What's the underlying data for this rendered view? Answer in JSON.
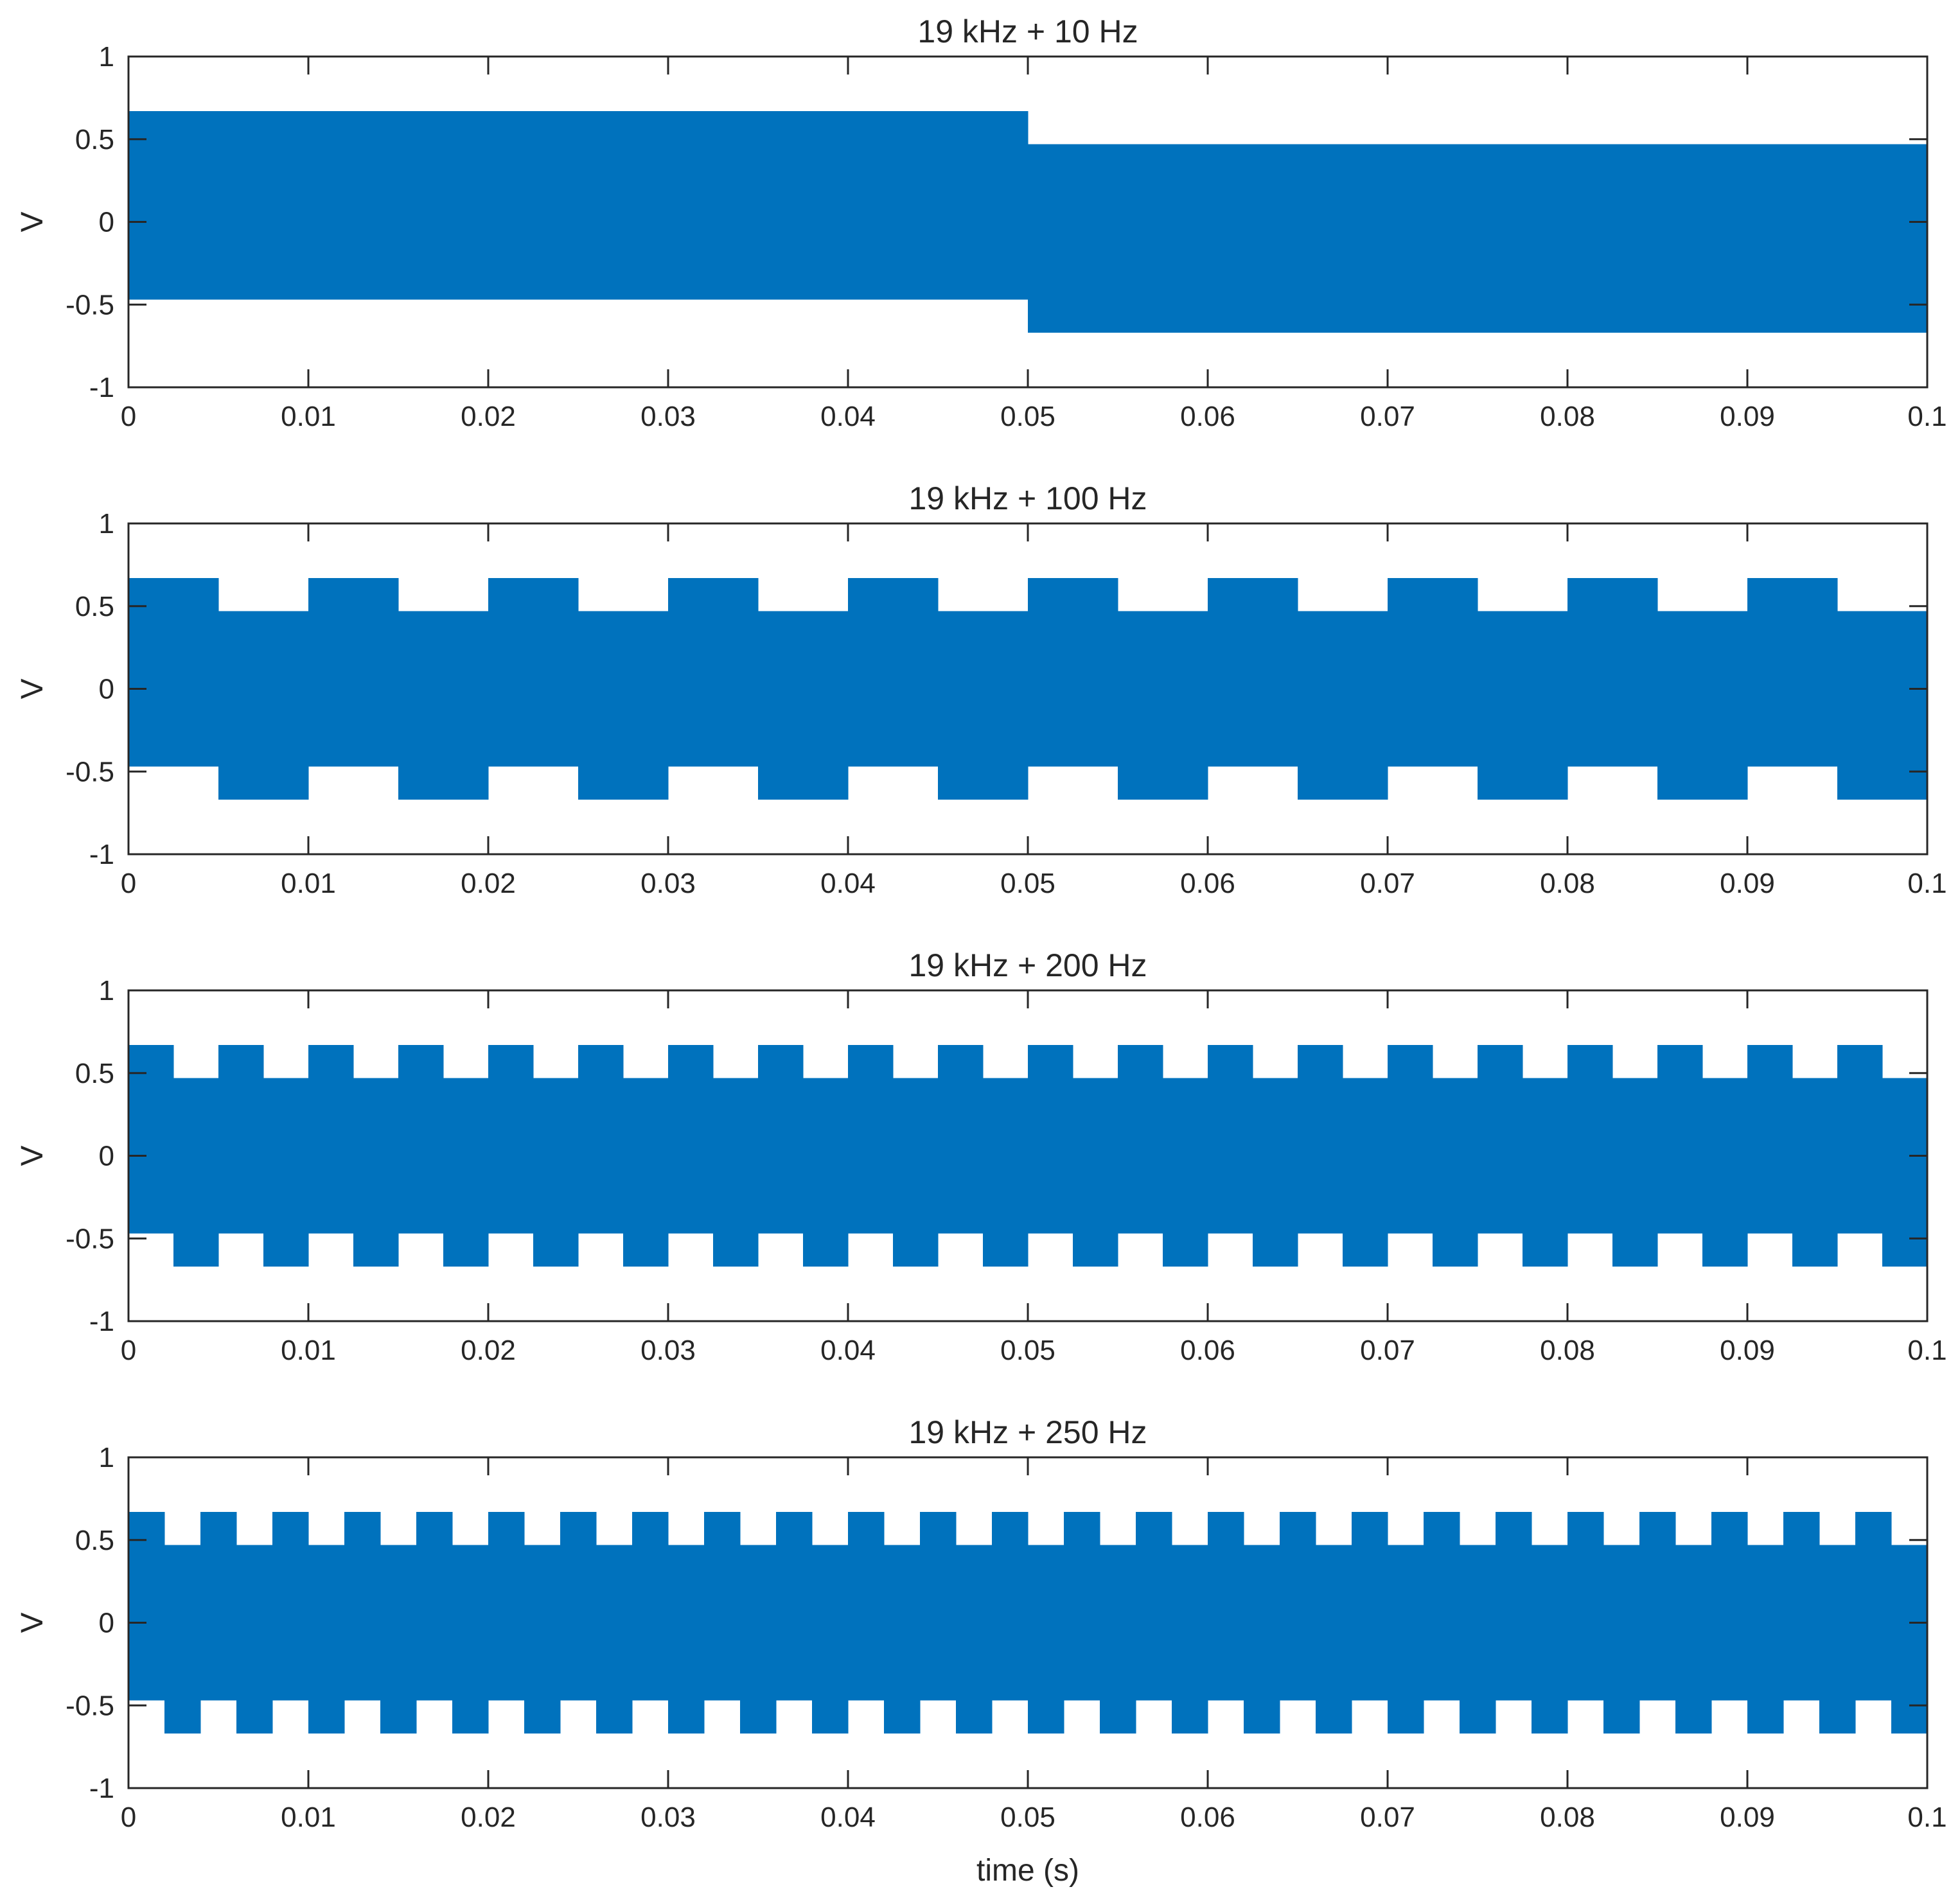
{
  "figure": {
    "xlabel": "time (s)"
  },
  "chart_data": [
    {
      "type": "area",
      "title": "19 kHz + 10 Hz",
      "ylabel": "V",
      "xlim": [
        0,
        0.1
      ],
      "ylim": [
        -1,
        1
      ],
      "xticks": [
        "0",
        "0.01",
        "0.02",
        "0.03",
        "0.04",
        "0.05",
        "0.06",
        "0.07",
        "0.08",
        "0.09",
        "0.1"
      ],
      "yticks": [
        "-1",
        "-0.5",
        "0",
        "0.5",
        "1"
      ],
      "series": [
        {
          "color": "#0072BD",
          "segments": [
            {
              "x_start": 0,
              "x_end": 0.05,
              "y_min": -0.47,
              "y_max": 0.67
            },
            {
              "x_start": 0.05,
              "x_end": 0.1,
              "y_min": -0.67,
              "y_max": 0.47
            }
          ]
        }
      ]
    },
    {
      "type": "area",
      "title": "19 kHz + 100 Hz",
      "ylabel": "V",
      "xlim": [
        0,
        0.1
      ],
      "ylim": [
        -1,
        1
      ],
      "xticks": [
        "0",
        "0.01",
        "0.02",
        "0.03",
        "0.04",
        "0.05",
        "0.06",
        "0.07",
        "0.08",
        "0.09",
        "0.1"
      ],
      "yticks": [
        "-1",
        "-0.5",
        "0",
        "0.5",
        "1"
      ],
      "series": [
        {
          "color": "#0072BD",
          "segments": [
            {
              "x_start": 0,
              "x_end": 0.005,
              "y_min": -0.47,
              "y_max": 0.67
            },
            {
              "x_start": 0.005,
              "x_end": 0.01,
              "y_min": -0.67,
              "y_max": 0.47
            },
            {
              "x_start": 0.01,
              "x_end": 0.015,
              "y_min": -0.47,
              "y_max": 0.67
            },
            {
              "x_start": 0.015,
              "x_end": 0.02,
              "y_min": -0.67,
              "y_max": 0.47
            },
            {
              "x_start": 0.02,
              "x_end": 0.025,
              "y_min": -0.47,
              "y_max": 0.67
            },
            {
              "x_start": 0.025,
              "x_end": 0.03,
              "y_min": -0.67,
              "y_max": 0.47
            },
            {
              "x_start": 0.03,
              "x_end": 0.035,
              "y_min": -0.47,
              "y_max": 0.67
            },
            {
              "x_start": 0.035,
              "x_end": 0.04,
              "y_min": -0.67,
              "y_max": 0.47
            },
            {
              "x_start": 0.04,
              "x_end": 0.045,
              "y_min": -0.47,
              "y_max": 0.67
            },
            {
              "x_start": 0.045,
              "x_end": 0.05,
              "y_min": -0.67,
              "y_max": 0.47
            },
            {
              "x_start": 0.05,
              "x_end": 0.055,
              "y_min": -0.47,
              "y_max": 0.67
            },
            {
              "x_start": 0.055,
              "x_end": 0.06,
              "y_min": -0.67,
              "y_max": 0.47
            },
            {
              "x_start": 0.06,
              "x_end": 0.065,
              "y_min": -0.47,
              "y_max": 0.67
            },
            {
              "x_start": 0.065,
              "x_end": 0.07,
              "y_min": -0.67,
              "y_max": 0.47
            },
            {
              "x_start": 0.07,
              "x_end": 0.075,
              "y_min": -0.47,
              "y_max": 0.67
            },
            {
              "x_start": 0.075,
              "x_end": 0.08,
              "y_min": -0.67,
              "y_max": 0.47
            },
            {
              "x_start": 0.08,
              "x_end": 0.085,
              "y_min": -0.47,
              "y_max": 0.67
            },
            {
              "x_start": 0.085,
              "x_end": 0.09,
              "y_min": -0.67,
              "y_max": 0.47
            },
            {
              "x_start": 0.09,
              "x_end": 0.095,
              "y_min": -0.47,
              "y_max": 0.67
            },
            {
              "x_start": 0.095,
              "x_end": 0.1,
              "y_min": -0.67,
              "y_max": 0.47
            }
          ]
        }
      ]
    },
    {
      "type": "area",
      "title": "19 kHz + 200 Hz",
      "ylabel": "V",
      "xlim": [
        0,
        0.1
      ],
      "ylim": [
        -1,
        1
      ],
      "xticks": [
        "0",
        "0.01",
        "0.02",
        "0.03",
        "0.04",
        "0.05",
        "0.06",
        "0.07",
        "0.08",
        "0.09",
        "0.1"
      ],
      "yticks": [
        "-1",
        "-0.5",
        "0",
        "0.5",
        "1"
      ],
      "series": [
        {
          "color": "#0072BD",
          "segments": [
            {
              "x_start": 0,
              "x_end": 0.0025,
              "y_min": -0.47,
              "y_max": 0.67
            },
            {
              "x_start": 0.0025,
              "x_end": 0.005,
              "y_min": -0.67,
              "y_max": 0.47
            },
            {
              "x_start": 0.005,
              "x_end": 0.0075,
              "y_min": -0.47,
              "y_max": 0.67
            },
            {
              "x_start": 0.0075,
              "x_end": 0.01,
              "y_min": -0.67,
              "y_max": 0.47
            },
            {
              "x_start": 0.01,
              "x_end": 0.0125,
              "y_min": -0.47,
              "y_max": 0.67
            },
            {
              "x_start": 0.0125,
              "x_end": 0.015,
              "y_min": -0.67,
              "y_max": 0.47
            },
            {
              "x_start": 0.015,
              "x_end": 0.0175,
              "y_min": -0.47,
              "y_max": 0.67
            },
            {
              "x_start": 0.0175,
              "x_end": 0.02,
              "y_min": -0.67,
              "y_max": 0.47
            },
            {
              "x_start": 0.02,
              "x_end": 0.0225,
              "y_min": -0.47,
              "y_max": 0.67
            },
            {
              "x_start": 0.0225,
              "x_end": 0.025,
              "y_min": -0.67,
              "y_max": 0.47
            },
            {
              "x_start": 0.025,
              "x_end": 0.0275,
              "y_min": -0.47,
              "y_max": 0.67
            },
            {
              "x_start": 0.0275,
              "x_end": 0.03,
              "y_min": -0.67,
              "y_max": 0.47
            },
            {
              "x_start": 0.03,
              "x_end": 0.0325,
              "y_min": -0.47,
              "y_max": 0.67
            },
            {
              "x_start": 0.0325,
              "x_end": 0.035,
              "y_min": -0.67,
              "y_max": 0.47
            },
            {
              "x_start": 0.035,
              "x_end": 0.0375,
              "y_min": -0.47,
              "y_max": 0.67
            },
            {
              "x_start": 0.0375,
              "x_end": 0.04,
              "y_min": -0.67,
              "y_max": 0.47
            },
            {
              "x_start": 0.04,
              "x_end": 0.0425,
              "y_min": -0.47,
              "y_max": 0.67
            },
            {
              "x_start": 0.0425,
              "x_end": 0.045,
              "y_min": -0.67,
              "y_max": 0.47
            },
            {
              "x_start": 0.045,
              "x_end": 0.0475,
              "y_min": -0.47,
              "y_max": 0.67
            },
            {
              "x_start": 0.0475,
              "x_end": 0.05,
              "y_min": -0.67,
              "y_max": 0.47
            },
            {
              "x_start": 0.05,
              "x_end": 0.0525,
              "y_min": -0.47,
              "y_max": 0.67
            },
            {
              "x_start": 0.0525,
              "x_end": 0.055,
              "y_min": -0.67,
              "y_max": 0.47
            },
            {
              "x_start": 0.055,
              "x_end": 0.0575,
              "y_min": -0.47,
              "y_max": 0.67
            },
            {
              "x_start": 0.0575,
              "x_end": 0.06,
              "y_min": -0.67,
              "y_max": 0.47
            },
            {
              "x_start": 0.06,
              "x_end": 0.0625,
              "y_min": -0.47,
              "y_max": 0.67
            },
            {
              "x_start": 0.0625,
              "x_end": 0.065,
              "y_min": -0.67,
              "y_max": 0.47
            },
            {
              "x_start": 0.065,
              "x_end": 0.0675,
              "y_min": -0.47,
              "y_max": 0.67
            },
            {
              "x_start": 0.0675,
              "x_end": 0.07,
              "y_min": -0.67,
              "y_max": 0.47
            },
            {
              "x_start": 0.07,
              "x_end": 0.0725,
              "y_min": -0.47,
              "y_max": 0.67
            },
            {
              "x_start": 0.0725,
              "x_end": 0.075,
              "y_min": -0.67,
              "y_max": 0.47
            },
            {
              "x_start": 0.075,
              "x_end": 0.0775,
              "y_min": -0.47,
              "y_max": 0.67
            },
            {
              "x_start": 0.0775,
              "x_end": 0.08,
              "y_min": -0.67,
              "y_max": 0.47
            },
            {
              "x_start": 0.08,
              "x_end": 0.0825,
              "y_min": -0.47,
              "y_max": 0.67
            },
            {
              "x_start": 0.0825,
              "x_end": 0.085,
              "y_min": -0.67,
              "y_max": 0.47
            },
            {
              "x_start": 0.085,
              "x_end": 0.0875,
              "y_min": -0.47,
              "y_max": 0.67
            },
            {
              "x_start": 0.0875,
              "x_end": 0.09,
              "y_min": -0.67,
              "y_max": 0.47
            },
            {
              "x_start": 0.09,
              "x_end": 0.0925,
              "y_min": -0.47,
              "y_max": 0.67
            },
            {
              "x_start": 0.0925,
              "x_end": 0.095,
              "y_min": -0.67,
              "y_max": 0.47
            },
            {
              "x_start": 0.095,
              "x_end": 0.0975,
              "y_min": -0.47,
              "y_max": 0.67
            },
            {
              "x_start": 0.0975,
              "x_end": 0.1,
              "y_min": -0.67,
              "y_max": 0.47
            }
          ]
        }
      ]
    },
    {
      "type": "area",
      "title": "19 kHz + 250 Hz",
      "ylabel": "V",
      "xlim": [
        0,
        0.1
      ],
      "ylim": [
        -1,
        1
      ],
      "xticks": [
        "0",
        "0.01",
        "0.02",
        "0.03",
        "0.04",
        "0.05",
        "0.06",
        "0.07",
        "0.08",
        "0.09",
        "0.1"
      ],
      "yticks": [
        "-1",
        "-0.5",
        "0",
        "0.5",
        "1"
      ],
      "series": [
        {
          "color": "#0072BD",
          "segments": [
            {
              "x_start": 0,
              "x_end": 0.002,
              "y_min": -0.47,
              "y_max": 0.67
            },
            {
              "x_start": 0.002,
              "x_end": 0.004,
              "y_min": -0.67,
              "y_max": 0.47
            },
            {
              "x_start": 0.004,
              "x_end": 0.006,
              "y_min": -0.47,
              "y_max": 0.67
            },
            {
              "x_start": 0.006,
              "x_end": 0.008,
              "y_min": -0.67,
              "y_max": 0.47
            },
            {
              "x_start": 0.008,
              "x_end": 0.01,
              "y_min": -0.47,
              "y_max": 0.67
            },
            {
              "x_start": 0.01,
              "x_end": 0.012,
              "y_min": -0.67,
              "y_max": 0.47
            },
            {
              "x_start": 0.012,
              "x_end": 0.014,
              "y_min": -0.47,
              "y_max": 0.67
            },
            {
              "x_start": 0.014,
              "x_end": 0.016,
              "y_min": -0.67,
              "y_max": 0.47
            },
            {
              "x_start": 0.016,
              "x_end": 0.018,
              "y_min": -0.47,
              "y_max": 0.67
            },
            {
              "x_start": 0.018,
              "x_end": 0.02,
              "y_min": -0.67,
              "y_max": 0.47
            },
            {
              "x_start": 0.02,
              "x_end": 0.022,
              "y_min": -0.47,
              "y_max": 0.67
            },
            {
              "x_start": 0.022,
              "x_end": 0.024,
              "y_min": -0.67,
              "y_max": 0.47
            },
            {
              "x_start": 0.024,
              "x_end": 0.026,
              "y_min": -0.47,
              "y_max": 0.67
            },
            {
              "x_start": 0.026,
              "x_end": 0.028,
              "y_min": -0.67,
              "y_max": 0.47
            },
            {
              "x_start": 0.028,
              "x_end": 0.03,
              "y_min": -0.47,
              "y_max": 0.67
            },
            {
              "x_start": 0.03,
              "x_end": 0.032,
              "y_min": -0.67,
              "y_max": 0.47
            },
            {
              "x_start": 0.032,
              "x_end": 0.034,
              "y_min": -0.47,
              "y_max": 0.67
            },
            {
              "x_start": 0.034,
              "x_end": 0.036,
              "y_min": -0.67,
              "y_max": 0.47
            },
            {
              "x_start": 0.036,
              "x_end": 0.038,
              "y_min": -0.47,
              "y_max": 0.67
            },
            {
              "x_start": 0.038,
              "x_end": 0.04,
              "y_min": -0.67,
              "y_max": 0.47
            },
            {
              "x_start": 0.04,
              "x_end": 0.042,
              "y_min": -0.47,
              "y_max": 0.67
            },
            {
              "x_start": 0.042,
              "x_end": 0.044,
              "y_min": -0.67,
              "y_max": 0.47
            },
            {
              "x_start": 0.044,
              "x_end": 0.046,
              "y_min": -0.47,
              "y_max": 0.67
            },
            {
              "x_start": 0.046,
              "x_end": 0.048,
              "y_min": -0.67,
              "y_max": 0.47
            },
            {
              "x_start": 0.048,
              "x_end": 0.05,
              "y_min": -0.47,
              "y_max": 0.67
            },
            {
              "x_start": 0.05,
              "x_end": 0.052,
              "y_min": -0.67,
              "y_max": 0.47
            },
            {
              "x_start": 0.052,
              "x_end": 0.054,
              "y_min": -0.47,
              "y_max": 0.67
            },
            {
              "x_start": 0.054,
              "x_end": 0.056,
              "y_min": -0.67,
              "y_max": 0.47
            },
            {
              "x_start": 0.056,
              "x_end": 0.058,
              "y_min": -0.47,
              "y_max": 0.67
            },
            {
              "x_start": 0.058,
              "x_end": 0.06,
              "y_min": -0.67,
              "y_max": 0.47
            },
            {
              "x_start": 0.06,
              "x_end": 0.062,
              "y_min": -0.47,
              "y_max": 0.67
            },
            {
              "x_start": 0.062,
              "x_end": 0.064,
              "y_min": -0.67,
              "y_max": 0.47
            },
            {
              "x_start": 0.064,
              "x_end": 0.066,
              "y_min": -0.47,
              "y_max": 0.67
            },
            {
              "x_start": 0.066,
              "x_end": 0.068,
              "y_min": -0.67,
              "y_max": 0.47
            },
            {
              "x_start": 0.068,
              "x_end": 0.07,
              "y_min": -0.47,
              "y_max": 0.67
            },
            {
              "x_start": 0.07,
              "x_end": 0.072,
              "y_min": -0.67,
              "y_max": 0.47
            },
            {
              "x_start": 0.072,
              "x_end": 0.074,
              "y_min": -0.47,
              "y_max": 0.67
            },
            {
              "x_start": 0.074,
              "x_end": 0.076,
              "y_min": -0.67,
              "y_max": 0.47
            },
            {
              "x_start": 0.076,
              "x_end": 0.078,
              "y_min": -0.47,
              "y_max": 0.67
            },
            {
              "x_start": 0.078,
              "x_end": 0.08,
              "y_min": -0.67,
              "y_max": 0.47
            },
            {
              "x_start": 0.08,
              "x_end": 0.082,
              "y_min": -0.47,
              "y_max": 0.67
            },
            {
              "x_start": 0.082,
              "x_end": 0.084,
              "y_min": -0.67,
              "y_max": 0.47
            },
            {
              "x_start": 0.084,
              "x_end": 0.086,
              "y_min": -0.47,
              "y_max": 0.67
            },
            {
              "x_start": 0.086,
              "x_end": 0.088,
              "y_min": -0.67,
              "y_max": 0.47
            },
            {
              "x_start": 0.088,
              "x_end": 0.09,
              "y_min": -0.47,
              "y_max": 0.67
            },
            {
              "x_start": 0.09,
              "x_end": 0.092,
              "y_min": -0.67,
              "y_max": 0.47
            },
            {
              "x_start": 0.092,
              "x_end": 0.094,
              "y_min": -0.47,
              "y_max": 0.67
            },
            {
              "x_start": 0.094,
              "x_end": 0.096,
              "y_min": -0.67,
              "y_max": 0.47
            },
            {
              "x_start": 0.096,
              "x_end": 0.098,
              "y_min": -0.47,
              "y_max": 0.67
            },
            {
              "x_start": 0.098,
              "x_end": 0.1,
              "y_min": -0.67,
              "y_max": 0.47
            }
          ]
        }
      ]
    }
  ]
}
